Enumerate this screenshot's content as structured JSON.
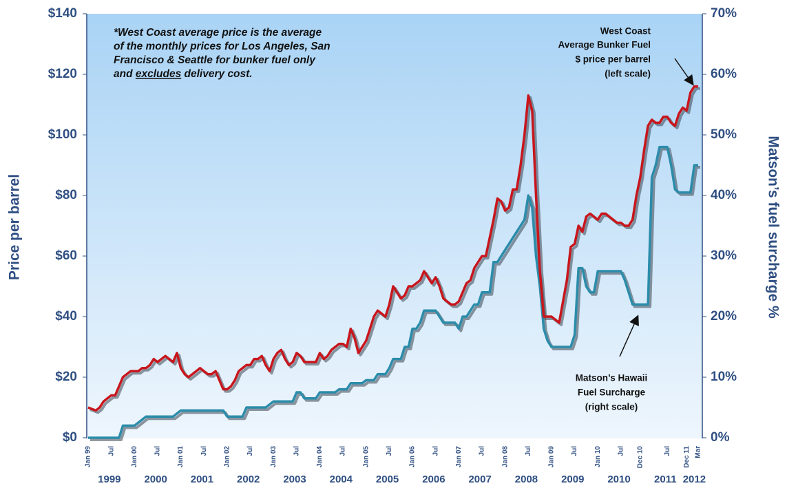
{
  "chart_data": {
    "type": "line",
    "ylabel": "Price per barrel",
    "y2label": "Matson’s fuel surcharge %",
    "note": [
      "*West Coast average price is the average",
      "of the monthly prices for Los Angeles, San",
      "Francisco & Seattle for bunker fuel only",
      {
        "before": "and ",
        "underlined": "excludes",
        "after": " delivery cost."
      }
    ],
    "series_labels": [
      [
        "West Coast",
        "Average Bunker Fuel",
        "$ price per barrel",
        "(left scale)"
      ],
      [
        "Matson’s Hawaii",
        "Fuel Surcharge",
        "(right scale)"
      ]
    ],
    "ylim": [
      0,
      140
    ],
    "yticks": [
      {
        "value": 0,
        "label": "$0"
      },
      {
        "value": 20,
        "label": "$20"
      },
      {
        "value": 40,
        "label": "$40"
      },
      {
        "value": 60,
        "label": "$60"
      },
      {
        "value": 80,
        "label": "$80"
      },
      {
        "value": 100,
        "label": "$100"
      },
      {
        "value": 120,
        "label": "$120"
      },
      {
        "value": 140,
        "label": "$140"
      }
    ],
    "y2lim": [
      0,
      70
    ],
    "y2ticks": [
      {
        "value": 0,
        "label": "0%"
      },
      {
        "value": 10,
        "label": "10%"
      },
      {
        "value": 20,
        "label": "20%"
      },
      {
        "value": 30,
        "label": "30%"
      },
      {
        "value": 40,
        "label": "40%"
      },
      {
        "value": 50,
        "label": "50%"
      },
      {
        "value": 60,
        "label": "60%"
      },
      {
        "value": 70,
        "label": "70%"
      }
    ],
    "years": [
      "1999",
      "2000",
      "2001",
      "2002",
      "2003",
      "2004",
      "2005",
      "2006",
      "2007",
      "2008",
      "2009",
      "2010",
      "2011",
      "2012"
    ],
    "categories": [
      "Jan 99",
      null,
      null,
      null,
      null,
      null,
      "Jul",
      null,
      null,
      null,
      null,
      null,
      "Jan 00",
      null,
      null,
      null,
      null,
      null,
      "Jul",
      null,
      null,
      null,
      null,
      null,
      "Jan 01",
      null,
      null,
      null,
      null,
      null,
      "Jul",
      null,
      null,
      null,
      null,
      null,
      "Jan 02",
      null,
      null,
      null,
      null,
      null,
      "Jul",
      null,
      null,
      null,
      null,
      null,
      "Jan 03",
      null,
      null,
      null,
      null,
      null,
      "Jul",
      null,
      null,
      null,
      null,
      null,
      "Jan 04",
      null,
      null,
      null,
      null,
      null,
      "Jul",
      null,
      null,
      null,
      null,
      null,
      "Jan 05",
      null,
      null,
      null,
      null,
      null,
      "Jul",
      null,
      null,
      null,
      null,
      null,
      "Jan 06",
      null,
      null,
      null,
      null,
      null,
      "Jul",
      null,
      null,
      null,
      null,
      null,
      "Jan 07",
      null,
      null,
      null,
      null,
      null,
      "Jul",
      null,
      null,
      null,
      null,
      null,
      "Jan 08",
      null,
      null,
      null,
      null,
      null,
      "Jul",
      null,
      null,
      null,
      null,
      null,
      "Jan 09",
      null,
      null,
      null,
      null,
      null,
      "Jul",
      null,
      null,
      null,
      null,
      null,
      "Jan 10",
      null,
      null,
      null,
      null,
      null,
      "Jul",
      null,
      null,
      null,
      null,
      "Dec 10",
      null,
      null,
      null,
      null,
      null,
      null,
      "Jul",
      null,
      null,
      null,
      null,
      "Dec 11",
      null,
      null,
      "Mar"
    ],
    "series": [
      {
        "name": "West Coast Average Bunker Fuel",
        "color": "#c8161d",
        "values": [
          10,
          9.5,
          9,
          10,
          12,
          13,
          14,
          14,
          17,
          20,
          21,
          22,
          22,
          22,
          23,
          23,
          24,
          26,
          25,
          26,
          27,
          26,
          25,
          28,
          23,
          21,
          20,
          21,
          22,
          23,
          22,
          21,
          21,
          22,
          19,
          16,
          16,
          17,
          19,
          22,
          23,
          24,
          24,
          26,
          26,
          27,
          24,
          22,
          26,
          28,
          29,
          26,
          24,
          25,
          28,
          27,
          25,
          25,
          25,
          25,
          28,
          26,
          27,
          29,
          30,
          31,
          31,
          30,
          36,
          33,
          28,
          30,
          32,
          36,
          40,
          42,
          41,
          40,
          44,
          50,
          48,
          46,
          47,
          50,
          50,
          51,
          52,
          55,
          53,
          51,
          53,
          50,
          46,
          45,
          44,
          44,
          45,
          48,
          51,
          52,
          56,
          58,
          60,
          60,
          66,
          72,
          79,
          78,
          75,
          76,
          82,
          82,
          90,
          100,
          113,
          108,
          80,
          55,
          40,
          40,
          40,
          39,
          38,
          45,
          52,
          63,
          64,
          70,
          68,
          73,
          74,
          73,
          72,
          74,
          74,
          73,
          72,
          71,
          71,
          70,
          70,
          72,
          80,
          86,
          95,
          103,
          105,
          104,
          104,
          106,
          106,
          104,
          103,
          107,
          109,
          108,
          114,
          116,
          116
        ]
      },
      {
        "name": "Matson’s Hawaii Fuel Surcharge",
        "color": "#2b8caa",
        "axis": "y2",
        "values": [
          0,
          0,
          0,
          0,
          0,
          0,
          0,
          0,
          0,
          2,
          2,
          2,
          2,
          2.5,
          3,
          3.5,
          3.5,
          3.5,
          3.5,
          3.5,
          3.5,
          3.5,
          3.5,
          4,
          4.5,
          4.5,
          4.5,
          4.5,
          4.5,
          4.5,
          4.5,
          4.5,
          4.5,
          4.5,
          4.5,
          4.5,
          3.5,
          3.5,
          3.5,
          3.5,
          3.5,
          5,
          5,
          5,
          5,
          5,
          5,
          5.5,
          6,
          6,
          6,
          6,
          6,
          6,
          7.5,
          7.5,
          6.5,
          6.5,
          6.5,
          6.5,
          7.5,
          7.5,
          7.5,
          7.5,
          7.5,
          8,
          8,
          8,
          9,
          9,
          9,
          9,
          9.5,
          9.5,
          9.5,
          10.5,
          10.5,
          10.5,
          11.5,
          13,
          13,
          13,
          15,
          15,
          18,
          18,
          19,
          21,
          21,
          21,
          21,
          20,
          19,
          19,
          19,
          19,
          18,
          20,
          20,
          21,
          22,
          22,
          24,
          24,
          24,
          29,
          29,
          30,
          31,
          32,
          33,
          34,
          35,
          36,
          40,
          38,
          30,
          25,
          18,
          16,
          15,
          15,
          15,
          15,
          15,
          15,
          17,
          28,
          28,
          25,
          24,
          24,
          27.5,
          27.5,
          27.5,
          27.5,
          27.5,
          27.5,
          27.5,
          26,
          24,
          22,
          22,
          22,
          22,
          22,
          43,
          45,
          48,
          48,
          48,
          45,
          41,
          40.5,
          40.5,
          40.5,
          40.5,
          45,
          45
        ]
      }
    ]
  }
}
